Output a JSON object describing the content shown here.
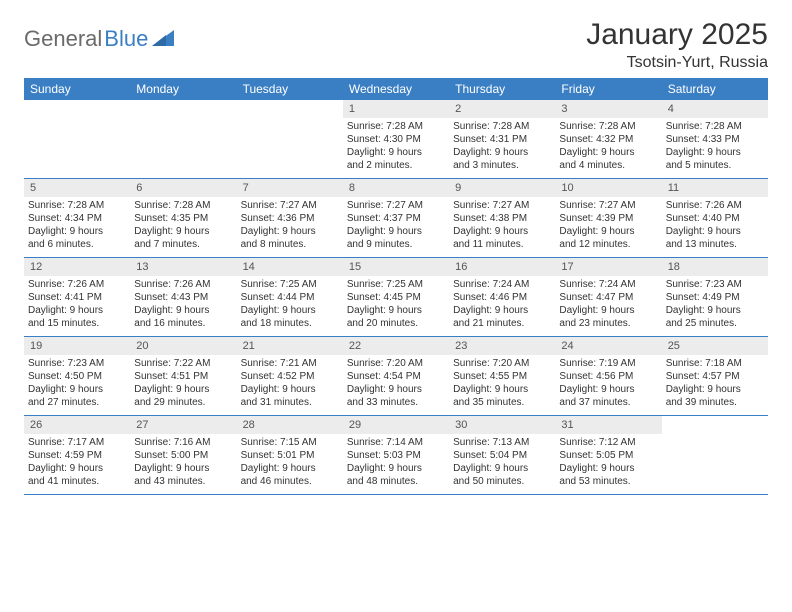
{
  "logo": {
    "text1": "General",
    "text2": "Blue"
  },
  "title": "January 2025",
  "location": "Tsotsin-Yurt, Russia",
  "colors": {
    "header_bg": "#3a7fc4",
    "daynum_bg": "#ececec",
    "text": "#333333",
    "logo_gray": "#6b6b6b",
    "logo_blue": "#3a7fc4",
    "border": "#3a7fc4",
    "background": "#ffffff"
  },
  "typography": {
    "title_fontsize": 30,
    "location_fontsize": 16,
    "dayheader_fontsize": 12,
    "cell_fontsize": 10
  },
  "day_headers": [
    "Sunday",
    "Monday",
    "Tuesday",
    "Wednesday",
    "Thursday",
    "Friday",
    "Saturday"
  ],
  "weeks": [
    [
      {},
      {},
      {},
      {
        "n": "1",
        "sunrise": "7:28 AM",
        "sunset": "4:30 PM",
        "dl1": "Daylight: 9 hours",
        "dl2": "and 2 minutes."
      },
      {
        "n": "2",
        "sunrise": "7:28 AM",
        "sunset": "4:31 PM",
        "dl1": "Daylight: 9 hours",
        "dl2": "and 3 minutes."
      },
      {
        "n": "3",
        "sunrise": "7:28 AM",
        "sunset": "4:32 PM",
        "dl1": "Daylight: 9 hours",
        "dl2": "and 4 minutes."
      },
      {
        "n": "4",
        "sunrise": "7:28 AM",
        "sunset": "4:33 PM",
        "dl1": "Daylight: 9 hours",
        "dl2": "and 5 minutes."
      }
    ],
    [
      {
        "n": "5",
        "sunrise": "7:28 AM",
        "sunset": "4:34 PM",
        "dl1": "Daylight: 9 hours",
        "dl2": "and 6 minutes."
      },
      {
        "n": "6",
        "sunrise": "7:28 AM",
        "sunset": "4:35 PM",
        "dl1": "Daylight: 9 hours",
        "dl2": "and 7 minutes."
      },
      {
        "n": "7",
        "sunrise": "7:27 AM",
        "sunset": "4:36 PM",
        "dl1": "Daylight: 9 hours",
        "dl2": "and 8 minutes."
      },
      {
        "n": "8",
        "sunrise": "7:27 AM",
        "sunset": "4:37 PM",
        "dl1": "Daylight: 9 hours",
        "dl2": "and 9 minutes."
      },
      {
        "n": "9",
        "sunrise": "7:27 AM",
        "sunset": "4:38 PM",
        "dl1": "Daylight: 9 hours",
        "dl2": "and 11 minutes."
      },
      {
        "n": "10",
        "sunrise": "7:27 AM",
        "sunset": "4:39 PM",
        "dl1": "Daylight: 9 hours",
        "dl2": "and 12 minutes."
      },
      {
        "n": "11",
        "sunrise": "7:26 AM",
        "sunset": "4:40 PM",
        "dl1": "Daylight: 9 hours",
        "dl2": "and 13 minutes."
      }
    ],
    [
      {
        "n": "12",
        "sunrise": "7:26 AM",
        "sunset": "4:41 PM",
        "dl1": "Daylight: 9 hours",
        "dl2": "and 15 minutes."
      },
      {
        "n": "13",
        "sunrise": "7:26 AM",
        "sunset": "4:43 PM",
        "dl1": "Daylight: 9 hours",
        "dl2": "and 16 minutes."
      },
      {
        "n": "14",
        "sunrise": "7:25 AM",
        "sunset": "4:44 PM",
        "dl1": "Daylight: 9 hours",
        "dl2": "and 18 minutes."
      },
      {
        "n": "15",
        "sunrise": "7:25 AM",
        "sunset": "4:45 PM",
        "dl1": "Daylight: 9 hours",
        "dl2": "and 20 minutes."
      },
      {
        "n": "16",
        "sunrise": "7:24 AM",
        "sunset": "4:46 PM",
        "dl1": "Daylight: 9 hours",
        "dl2": "and 21 minutes."
      },
      {
        "n": "17",
        "sunrise": "7:24 AM",
        "sunset": "4:47 PM",
        "dl1": "Daylight: 9 hours",
        "dl2": "and 23 minutes."
      },
      {
        "n": "18",
        "sunrise": "7:23 AM",
        "sunset": "4:49 PM",
        "dl1": "Daylight: 9 hours",
        "dl2": "and 25 minutes."
      }
    ],
    [
      {
        "n": "19",
        "sunrise": "7:23 AM",
        "sunset": "4:50 PM",
        "dl1": "Daylight: 9 hours",
        "dl2": "and 27 minutes."
      },
      {
        "n": "20",
        "sunrise": "7:22 AM",
        "sunset": "4:51 PM",
        "dl1": "Daylight: 9 hours",
        "dl2": "and 29 minutes."
      },
      {
        "n": "21",
        "sunrise": "7:21 AM",
        "sunset": "4:52 PM",
        "dl1": "Daylight: 9 hours",
        "dl2": "and 31 minutes."
      },
      {
        "n": "22",
        "sunrise": "7:20 AM",
        "sunset": "4:54 PM",
        "dl1": "Daylight: 9 hours",
        "dl2": "and 33 minutes."
      },
      {
        "n": "23",
        "sunrise": "7:20 AM",
        "sunset": "4:55 PM",
        "dl1": "Daylight: 9 hours",
        "dl2": "and 35 minutes."
      },
      {
        "n": "24",
        "sunrise": "7:19 AM",
        "sunset": "4:56 PM",
        "dl1": "Daylight: 9 hours",
        "dl2": "and 37 minutes."
      },
      {
        "n": "25",
        "sunrise": "7:18 AM",
        "sunset": "4:57 PM",
        "dl1": "Daylight: 9 hours",
        "dl2": "and 39 minutes."
      }
    ],
    [
      {
        "n": "26",
        "sunrise": "7:17 AM",
        "sunset": "4:59 PM",
        "dl1": "Daylight: 9 hours",
        "dl2": "and 41 minutes."
      },
      {
        "n": "27",
        "sunrise": "7:16 AM",
        "sunset": "5:00 PM",
        "dl1": "Daylight: 9 hours",
        "dl2": "and 43 minutes."
      },
      {
        "n": "28",
        "sunrise": "7:15 AM",
        "sunset": "5:01 PM",
        "dl1": "Daylight: 9 hours",
        "dl2": "and 46 minutes."
      },
      {
        "n": "29",
        "sunrise": "7:14 AM",
        "sunset": "5:03 PM",
        "dl1": "Daylight: 9 hours",
        "dl2": "and 48 minutes."
      },
      {
        "n": "30",
        "sunrise": "7:13 AM",
        "sunset": "5:04 PM",
        "dl1": "Daylight: 9 hours",
        "dl2": "and 50 minutes."
      },
      {
        "n": "31",
        "sunrise": "7:12 AM",
        "sunset": "5:05 PM",
        "dl1": "Daylight: 9 hours",
        "dl2": "and 53 minutes."
      },
      {}
    ]
  ]
}
